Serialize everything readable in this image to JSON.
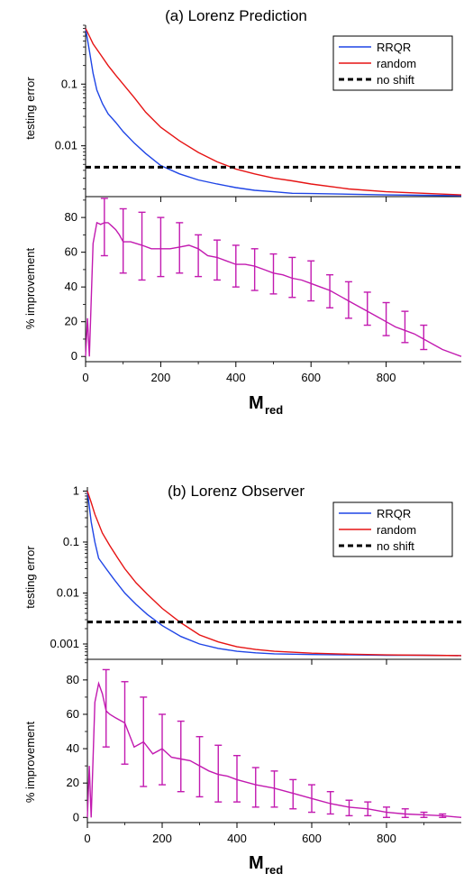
{
  "chart_data": [
    {
      "type": "line",
      "title": "(a) Lorenz Prediction",
      "xlabel": "M",
      "xlabel_subscript": "red",
      "xlim": [
        0,
        1000
      ],
      "xticks": [
        0,
        200,
        400,
        600,
        800
      ],
      "xtick_labels": [
        "0",
        "200",
        "400",
        "600",
        "800"
      ],
      "legend_position": "top-right",
      "top": {
        "ylabel": "testing error",
        "yscale": "log",
        "ylim": [
          0.0015,
          0.9
        ],
        "yticks": [
          0.01,
          0.1
        ],
        "ytick_labels": [
          "0.01",
          "0.1"
        ],
        "series": [
          {
            "name": "RRQR",
            "color": "#1f45e6",
            "style": "solid",
            "x": [
              0,
              10,
              20,
              30,
              45,
              60,
              80,
              100,
              130,
              160,
              200,
              250,
              300,
              350,
              400,
              450,
              500,
              550,
              600,
              700,
              800,
              900,
              1000
            ],
            "y": [
              0.8,
              0.35,
              0.15,
              0.08,
              0.048,
              0.033,
              0.024,
              0.017,
              0.011,
              0.0075,
              0.0048,
              0.0035,
              0.0028,
              0.0024,
              0.0021,
              0.0019,
              0.0018,
              0.0017,
              0.00168,
              0.00164,
              0.0016,
              0.00158,
              0.00155
            ]
          },
          {
            "name": "random",
            "color": "#e61414",
            "style": "solid",
            "x": [
              0,
              10,
              20,
              40,
              60,
              80,
              100,
              130,
              160,
              200,
              250,
              300,
              350,
              400,
              450,
              500,
              550,
              600,
              700,
              800,
              900,
              1000
            ],
            "y": [
              0.8,
              0.6,
              0.45,
              0.3,
              0.2,
              0.14,
              0.1,
              0.06,
              0.035,
              0.02,
              0.012,
              0.0078,
              0.0055,
              0.0042,
              0.0035,
              0.003,
              0.0027,
              0.0024,
              0.002,
              0.0018,
              0.0017,
              0.0016
            ]
          },
          {
            "name": "no shift",
            "color": "#000000",
            "style": "dashed",
            "x": [
              0,
              1000
            ],
            "y": [
              0.0045,
              0.0045
            ]
          }
        ]
      },
      "bottom": {
        "ylabel": "% improvement",
        "ylim": [
          -3,
          92
        ],
        "yticks": [
          0,
          20,
          40,
          60,
          80
        ],
        "ytick_labels": [
          "0",
          "20",
          "40",
          "60",
          "80"
        ],
        "series": [
          {
            "name": "",
            "color": "#c21ab0",
            "x": [
              0,
              5,
              10,
              20,
              30,
              40,
              50,
              60,
              70,
              80,
              90,
              100,
              120,
              150,
              175,
              200,
              225,
              250,
              275,
              300,
              325,
              350,
              375,
              400,
              425,
              450,
              475,
              500,
              525,
              550,
              575,
              600,
              625,
              650,
              675,
              700,
              725,
              750,
              775,
              800,
              825,
              850,
              875,
              900,
              925,
              950,
              975,
              1000
            ],
            "y": [
              0,
              22,
              0,
              65,
              77,
              76,
              77,
              77,
              75,
              73,
              70,
              66,
              66,
              64,
              62,
              62,
              62,
              63,
              64,
              62,
              58,
              57,
              55,
              53,
              53,
              52,
              50,
              48,
              47,
              45,
              44,
              42,
              40,
              38,
              35,
              32,
              29,
              26,
              23,
              20,
              17,
              15,
              13,
              10,
              7,
              4,
              2,
              0
            ]
          },
          {
            "name": "errorbars",
            "color": "#c21ab0",
            "x": [
              50,
              100,
              150,
              200,
              250,
              300,
              350,
              400,
              450,
              500,
              550,
              600,
              650,
              700,
              750,
              800,
              850,
              900
            ],
            "y": [
              77,
              66,
              64,
              62,
              63,
              60,
              57,
              53,
              52,
              48,
              45,
              42,
              38,
              32,
              26,
              20,
              15,
              10
            ],
            "lower": [
              58,
              48,
              44,
              46,
              48,
              46,
              44,
              40,
              38,
              36,
              34,
              32,
              28,
              22,
              18,
              12,
              8,
              4
            ],
            "upper": [
              91,
              85,
              83,
              80,
              77,
              70,
              67,
              64,
              62,
              59,
              57,
              55,
              47,
              43,
              37,
              31,
              26,
              18
            ]
          }
        ]
      }
    },
    {
      "type": "line",
      "title": "(b) Lorenz Observer",
      "xlabel": "M",
      "xlabel_subscript": "red",
      "xlim": [
        0,
        1000
      ],
      "xticks": [
        0,
        200,
        400,
        600,
        800
      ],
      "xtick_labels": [
        "0",
        "200",
        "400",
        "600",
        "800"
      ],
      "legend_position": "top-right",
      "top": {
        "ylabel": "testing error",
        "yscale": "log",
        "ylim": [
          0.0005,
          1.2
        ],
        "yticks": [
          0.001,
          0.01,
          0.1,
          1
        ],
        "ytick_labels": [
          "0.001",
          "0.01",
          "0.1",
          "1"
        ],
        "series": [
          {
            "name": "RRQR",
            "color": "#1f45e6",
            "style": "solid",
            "x": [
              0,
              10,
              20,
              30,
              50,
              70,
              100,
              130,
              160,
              200,
              250,
              300,
              350,
              400,
              450,
              500,
              600,
              700,
              800,
              900,
              1000
            ],
            "y": [
              1.0,
              0.25,
              0.1,
              0.048,
              0.03,
              0.019,
              0.01,
              0.006,
              0.0038,
              0.0023,
              0.0014,
              0.001,
              0.00082,
              0.00072,
              0.00067,
              0.00064,
              0.00062,
              0.00061,
              0.0006,
              0.0006,
              0.00059
            ]
          },
          {
            "name": "random",
            "color": "#e61414",
            "style": "solid",
            "x": [
              0,
              10,
              20,
              40,
              60,
              80,
              100,
              130,
              160,
              200,
              250,
              300,
              350,
              400,
              450,
              500,
              600,
              700,
              800,
              900,
              1000
            ],
            "y": [
              1.0,
              0.6,
              0.35,
              0.15,
              0.085,
              0.05,
              0.03,
              0.016,
              0.0095,
              0.005,
              0.0026,
              0.0015,
              0.0011,
              0.00088,
              0.00078,
              0.00072,
              0.00066,
              0.00063,
              0.00061,
              0.0006,
              0.00059
            ]
          },
          {
            "name": "no shift",
            "color": "#000000",
            "style": "dashed",
            "x": [
              0,
              1000
            ],
            "y": [
              0.0027,
              0.0027
            ]
          }
        ]
      },
      "bottom": {
        "ylabel": "% improvement",
        "ylim": [
          -3,
          92
        ],
        "yticks": [
          0,
          20,
          40,
          60,
          80
        ],
        "ytick_labels": [
          "0",
          "20",
          "40",
          "60",
          "80"
        ],
        "series": [
          {
            "name": "",
            "color": "#c21ab0",
            "x": [
              0,
              5,
              10,
              20,
              30,
              40,
              50,
              60,
              75,
              100,
              125,
              150,
              175,
              200,
              225,
              250,
              275,
              300,
              325,
              350,
              375,
              400,
              450,
              500,
              550,
              600,
              650,
              700,
              750,
              800,
              850,
              900,
              950,
              1000
            ],
            "y": [
              0,
              30,
              0,
              67,
              78,
              72,
              62,
              60,
              58,
              55,
              41,
              44,
              37,
              40,
              35,
              34,
              33,
              30,
              27,
              25,
              24,
              22,
              19,
              17,
              14,
              11,
              8,
              6,
              5,
              3,
              2,
              1.5,
              1,
              0
            ]
          },
          {
            "name": "errorbars",
            "color": "#c21ab0",
            "x": [
              50,
              100,
              150,
              200,
              250,
              300,
              350,
              400,
              450,
              500,
              550,
              600,
              650,
              700,
              750,
              800,
              850,
              900,
              950
            ],
            "y": [
              62,
              55,
              44,
              40,
              34,
              30,
              25,
              22,
              19,
              17,
              14,
              11,
              8,
              6,
              5,
              3,
              2,
              1.5,
              1
            ],
            "lower": [
              41,
              31,
              18,
              19,
              15,
              12,
              9,
              9,
              6,
              6,
              5,
              3,
              2,
              1,
              1,
              0,
              0,
              0,
              0
            ],
            "upper": [
              86,
              79,
              70,
              60,
              56,
              47,
              42,
              36,
              29,
              27,
              22,
              19,
              15,
              10,
              9,
              6,
              5,
              3,
              2
            ]
          }
        ]
      }
    }
  ]
}
